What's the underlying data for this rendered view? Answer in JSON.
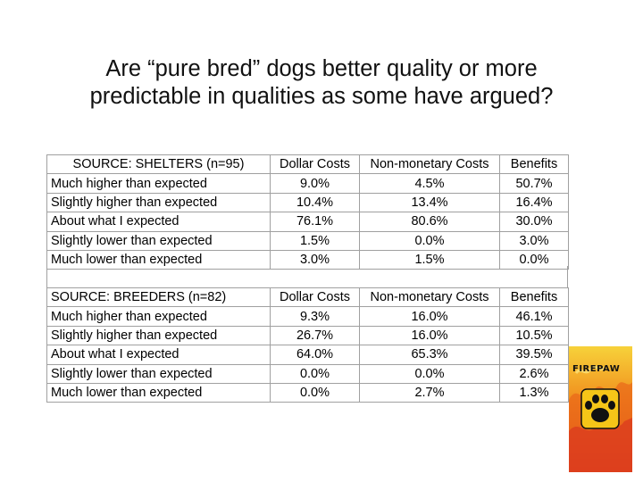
{
  "title": {
    "line1": "Are “pure bred” dogs better quality or more",
    "line2": "predictable in qualities as some have argued?"
  },
  "tables": [
    {
      "source": "SOURCE:  SHELTERS (n=95)",
      "columns": [
        "Dollar Costs",
        "Non-monetary Costs",
        "Benefits"
      ],
      "rows": [
        {
          "label": "Much higher than expected",
          "values": [
            "9.0%",
            "4.5%",
            "50.7%"
          ]
        },
        {
          "label": "Slightly higher than expected",
          "values": [
            "10.4%",
            "13.4%",
            "16.4%"
          ]
        },
        {
          "label": "About what I expected",
          "values": [
            "76.1%",
            "80.6%",
            "30.0%"
          ]
        },
        {
          "label": "Slightly lower than expected",
          "values": [
            "1.5%",
            "0.0%",
            "3.0%"
          ]
        },
        {
          "label": "Much lower than expected",
          "values": [
            "3.0%",
            "1.5%",
            "0.0%"
          ]
        }
      ]
    },
    {
      "source": "SOURCE:  BREEDERS (n=82)",
      "columns": [
        "Dollar Costs",
        "Non-monetary Costs",
        "Benefits"
      ],
      "rows": [
        {
          "label": "Much higher than expected",
          "values": [
            "9.3%",
            "16.0%",
            "46.1%"
          ]
        },
        {
          "label": "Slightly higher than expected",
          "values": [
            "26.7%",
            "16.0%",
            "10.5%"
          ]
        },
        {
          "label": "About what I expected",
          "values": [
            "64.0%",
            "65.3%",
            "39.5%"
          ]
        },
        {
          "label": "Slightly lower than expected",
          "values": [
            "0.0%",
            "0.0%",
            "2.6%"
          ]
        },
        {
          "label": "Much lower than expected",
          "values": [
            "0.0%",
            "2.7%",
            "1.3%"
          ]
        }
      ]
    }
  ],
  "logo": {
    "text": "FIREPAW",
    "icon": "paw-print-icon",
    "colors": {
      "orange": "#f08a1c",
      "yellow": "#f7d23a",
      "red": "#d8321e",
      "paw": "#111111",
      "paw_bg": "#f5c518"
    }
  }
}
